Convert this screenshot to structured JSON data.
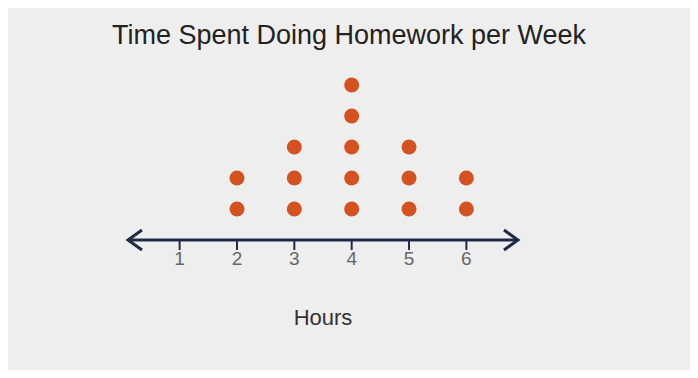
{
  "chart_data": {
    "type": "dot",
    "title": "Time Spent Doing Homework per Week",
    "x_label": "Hours",
    "x": [
      2,
      3,
      4,
      5,
      6
    ],
    "values": [
      2,
      3,
      5,
      3,
      2
    ],
    "color": "#d4521f",
    "xlim": [
      0.1,
      6.9
    ],
    "xticks": [
      1,
      2,
      3,
      4,
      5,
      6
    ],
    "grid": false,
    "tick_labels": "x"
  }
}
